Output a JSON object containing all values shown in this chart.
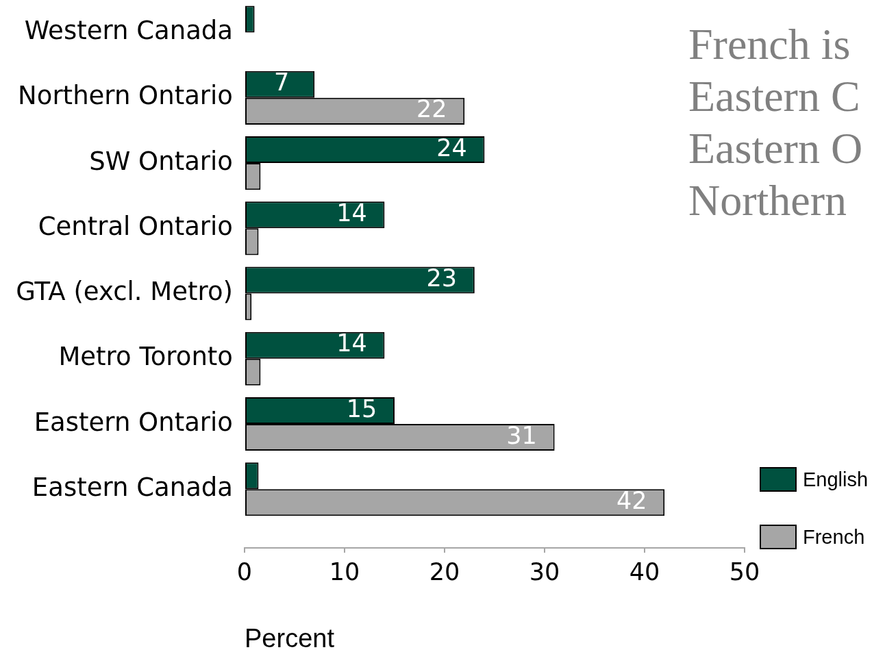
{
  "chart_data": {
    "type": "bar",
    "orientation": "horizontal",
    "categories": [
      "Western Canada",
      "Northern Ontario",
      "SW Ontario",
      "Central Ontario",
      "GTA (excl. Metro)",
      "Metro Toronto",
      "Eastern Ontario",
      "Eastern Canada"
    ],
    "series": [
      {
        "name": "English",
        "color": "#00513f",
        "values": [
          1,
          7,
          24,
          14,
          23,
          14,
          15,
          1.4
        ],
        "value_labels": [
          null,
          "7",
          "24",
          "14",
          "23",
          "14",
          "15",
          null
        ]
      },
      {
        "name": "French",
        "color": "#a6a6a6",
        "values": [
          0,
          22,
          1.6,
          1.4,
          0.7,
          1.6,
          31,
          42
        ],
        "value_labels": [
          null,
          "22",
          null,
          null,
          null,
          null,
          "31",
          "42"
        ]
      }
    ],
    "xlim": [
      0,
      50
    ],
    "xticks": [
      0,
      10,
      20,
      30,
      40,
      50
    ],
    "xlabel": "Percent",
    "legend": "bottom right",
    "annotations": [
      "French is\nEastern C\nEastern O\nNorthern"
    ]
  }
}
